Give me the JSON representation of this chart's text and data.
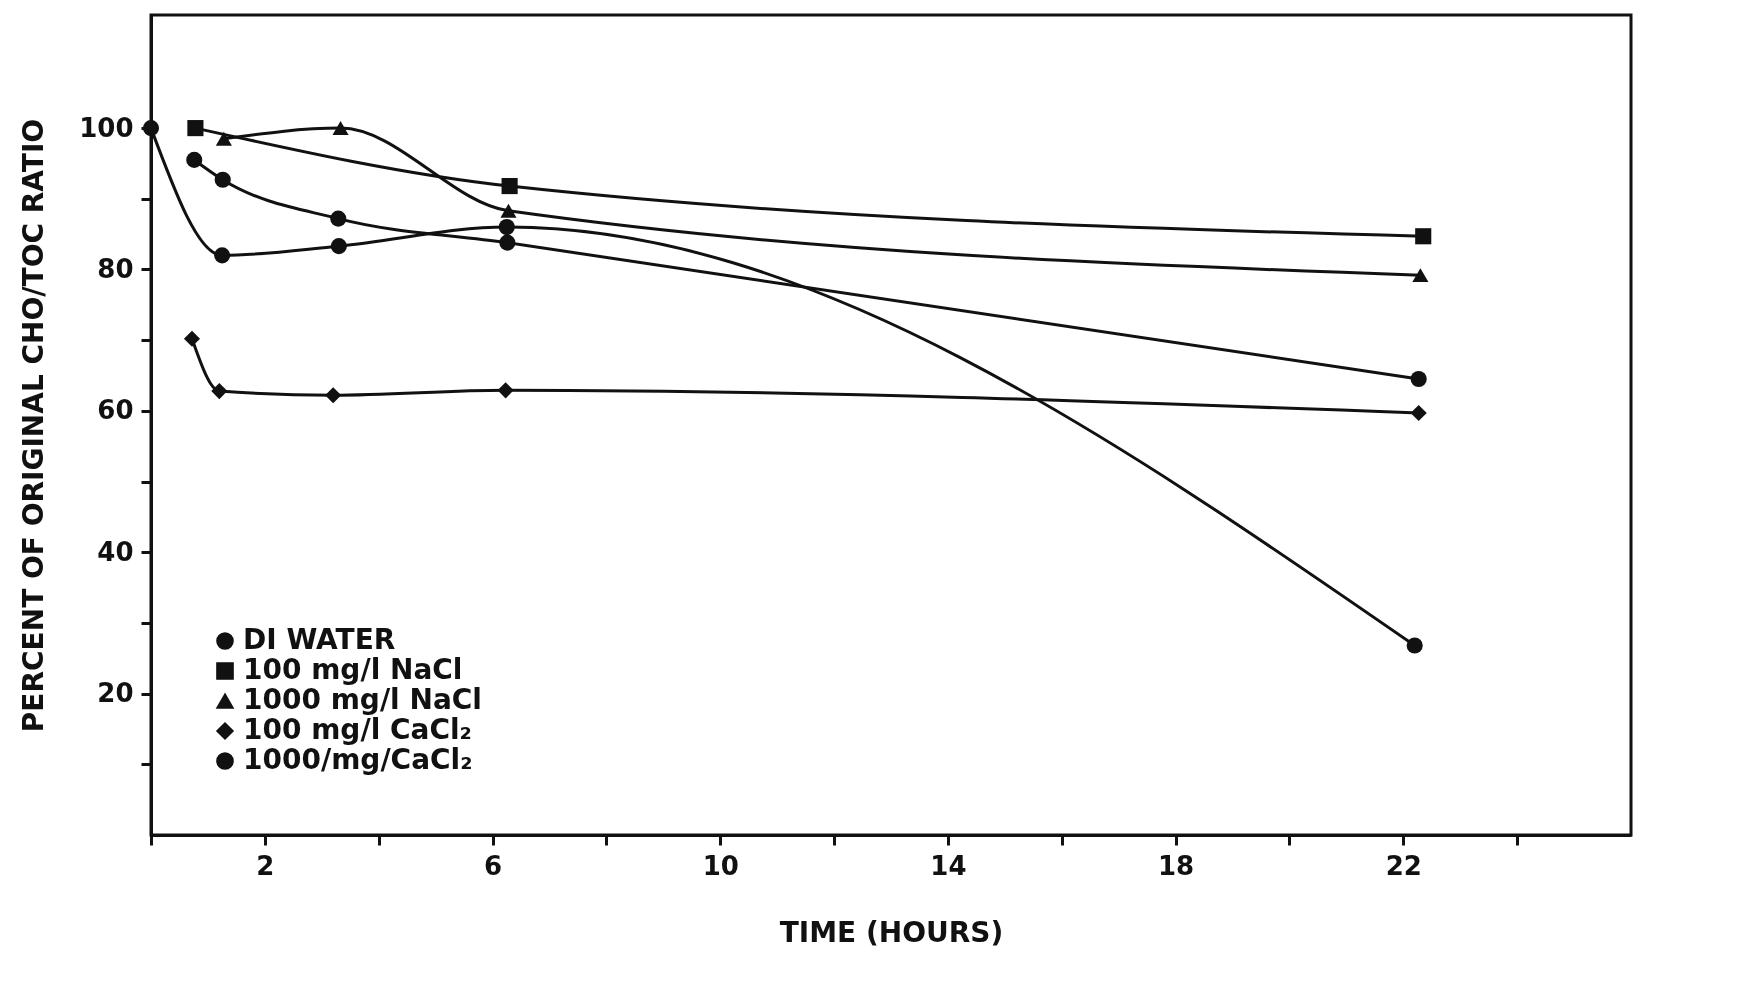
{
  "chart_data": {
    "type": "line",
    "xlabel": "TIME (HOURS)",
    "ylabel": "PERCENT OF ORIGINAL CHO/TOC RATIO",
    "xlim": [
      0,
      26
    ],
    "ylim": [
      0,
      116
    ],
    "xticks": [
      {
        "value": 0,
        "label": null
      },
      2,
      {
        "value": 4,
        "label": null
      },
      6,
      {
        "value": 8,
        "label": null
      },
      10,
      {
        "value": 12,
        "label": null
      },
      14,
      {
        "value": 16,
        "label": null
      },
      18,
      {
        "value": 20,
        "label": null
      },
      22,
      {
        "value": 24,
        "label": null
      }
    ],
    "yticks": [
      {
        "value": 10,
        "label": null
      },
      20,
      {
        "value": 30,
        "label": null
      },
      40,
      {
        "value": 50,
        "label": null
      },
      60,
      {
        "value": 70,
        "label": null
      },
      80,
      {
        "value": 90,
        "label": null
      },
      100
    ],
    "grid": false,
    "legend": "bottom left",
    "line_style": "solid",
    "series": [
      {
        "name": "DI WATER",
        "color": "#111111",
        "marker": "circle",
        "x": [
          0,
          1.25,
          3.3,
          6.25,
          22.2
        ],
        "values": [
          100,
          82,
          83.3,
          86,
          26.8
        ]
      },
      {
        "name": "100 mg/l NaCl",
        "color": "#111111",
        "marker": "square",
        "x": [
          0.78,
          6.3,
          22.35
        ],
        "values": [
          100,
          91.8,
          84.7
        ]
      },
      {
        "name": "1000 mg/l NaCl",
        "color": "#111111",
        "marker": "triangle",
        "x": [
          1.28,
          3.33,
          6.28,
          22.3
        ],
        "values": [
          98.5,
          100,
          88.3,
          79.2
        ]
      },
      {
        "name": "100 mg/l CaCl₂",
        "color": "#111111",
        "marker": "diamond",
        "x": [
          0.72,
          1.2,
          3.2,
          6.23,
          22.27
        ],
        "values": [
          70.2,
          62.8,
          62.2,
          62.9,
          59.7
        ]
      },
      {
        "name": "1000/mg/CaCl₂",
        "color": "#111111",
        "marker": "circle",
        "x": [
          0.76,
          1.26,
          3.29,
          6.26,
          22.27
        ],
        "values": [
          95.5,
          92.7,
          87.2,
          83.8,
          64.5
        ]
      }
    ]
  }
}
